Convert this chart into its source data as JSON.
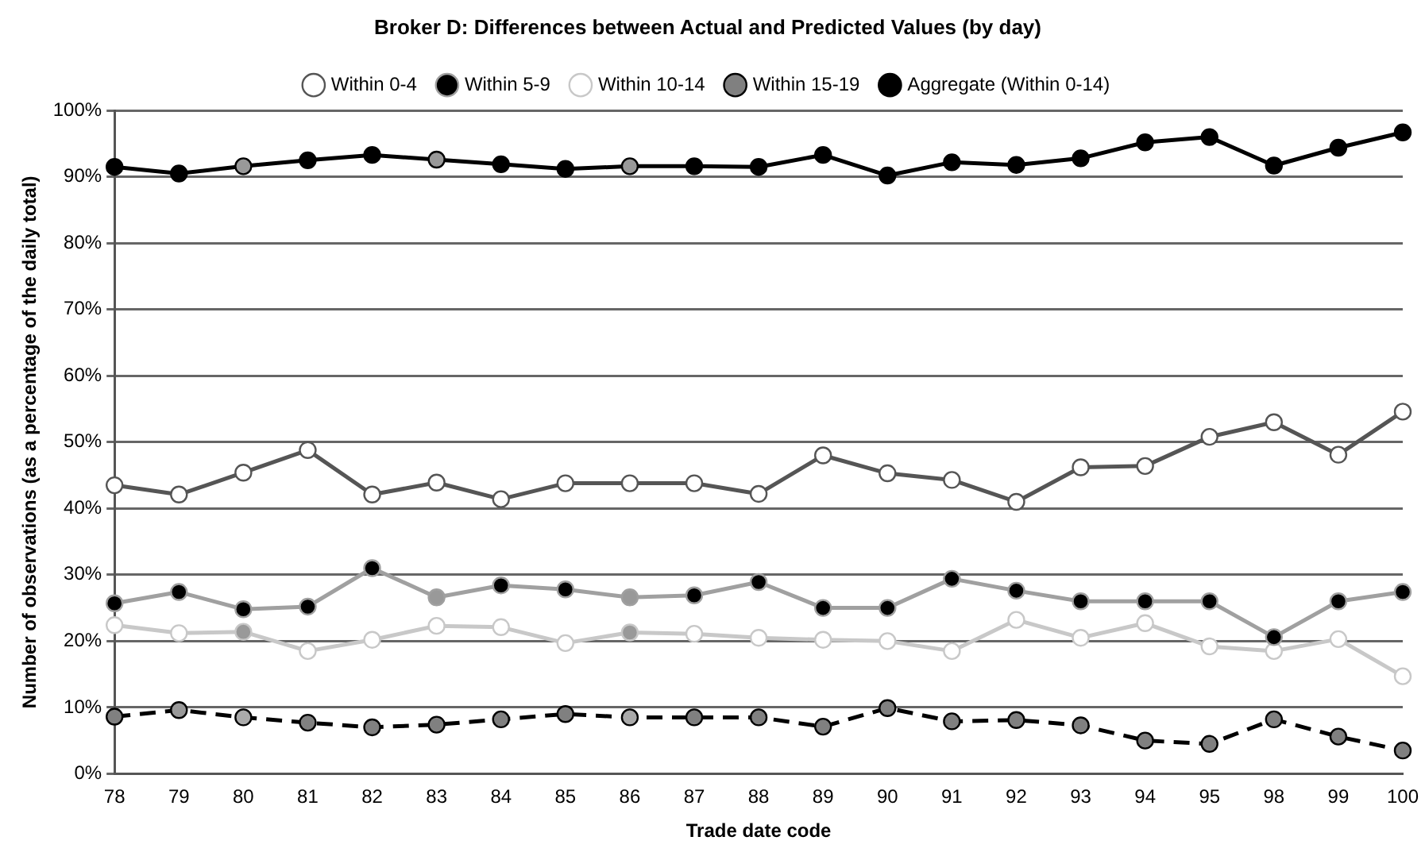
{
  "chart_data": {
    "type": "line",
    "title": "Broker D: Differences between Actual and Predicted Values (by day)",
    "xlabel": "Trade date code",
    "ylabel": "Number of observations (as a percentage of the daily total)",
    "categories": [
      "78",
      "79",
      "80",
      "81",
      "82",
      "83",
      "84",
      "85",
      "86",
      "87",
      "88",
      "89",
      "90",
      "91",
      "92",
      "93",
      "94",
      "95",
      "98",
      "99",
      "100"
    ],
    "series": [
      {
        "name": "Within 0-4",
        "color": "#555555",
        "colors": [
          "#ffffff",
          "#ffffff",
          "#ffffff",
          "#ffffff",
          "#ffffff",
          "#ffffff",
          "#ffffff",
          "#ffffff",
          "#ffffff",
          "#ffffff",
          "#ffffff",
          "#ffffff",
          "#ffffff",
          "#ffffff",
          "#ffffff",
          "#ffffff",
          "#ffffff",
          "#ffffff",
          "#ffffff",
          "#ffffff",
          "#ffffff"
        ],
        "values": [
          43.5,
          42.1,
          45.4,
          48.8,
          42.1,
          43.9,
          41.4,
          43.8,
          43.8,
          43.8,
          42.2,
          48.0,
          45.3,
          44.3,
          41.0,
          46.2,
          46.4,
          50.8,
          53.0,
          48.1,
          54.6
        ]
      },
      {
        "name": "Within 5-9",
        "color": "#a0a0a0",
        "colors": [
          "#000000",
          "#000000",
          "#000000",
          "#000000",
          "#000000",
          "#999999",
          "#000000",
          "#000000",
          "#999999",
          "#000000",
          "#000000",
          "#000000",
          "#000000",
          "#000000",
          "#000000",
          "#000000",
          "#000000",
          "#000000",
          "#000000",
          "#000000",
          "#000000"
        ],
        "values": [
          25.7,
          27.4,
          24.8,
          25.2,
          31.0,
          26.6,
          28.4,
          27.8,
          26.6,
          26.9,
          28.9,
          25.0,
          25.0,
          29.4,
          27.6,
          26.0,
          26.0,
          26.0,
          20.6,
          26.0,
          27.4
        ]
      },
      {
        "name": "Within 10-14",
        "color": "#c8c8c8",
        "colors": [
          "#ffffff",
          "#ffffff",
          "#999999",
          "#ffffff",
          "#ffffff",
          "#ffffff",
          "#ffffff",
          "#ffffff",
          "#999999",
          "#ffffff",
          "#ffffff",
          "#ffffff",
          "#ffffff",
          "#ffffff",
          "#ffffff",
          "#ffffff",
          "#ffffff",
          "#ffffff",
          "#ffffff",
          "#ffffff",
          "#ffffff"
        ],
        "values": [
          22.4,
          21.2,
          21.4,
          18.5,
          20.2,
          22.3,
          22.1,
          19.7,
          21.3,
          21.1,
          20.5,
          20.2,
          20.0,
          18.5,
          23.2,
          20.5,
          22.7,
          19.2,
          18.5,
          20.3,
          14.7
        ]
      },
      {
        "name": "Within 15-19",
        "color": "#000000",
        "line_style": "dashed",
        "colors": [
          "#808080",
          "#999999",
          "#aaaaaa",
          "#808080",
          "#808080",
          "#808080",
          "#808080",
          "#808080",
          "#aaaaaa",
          "#808080",
          "#808080",
          "#808080",
          "#808080",
          "#808080",
          "#808080",
          "#808080",
          "#808080",
          "#808080",
          "#808080",
          "#808080",
          "#808080"
        ],
        "values": [
          8.6,
          9.6,
          8.5,
          7.7,
          7.0,
          7.4,
          8.2,
          9.0,
          8.5,
          8.5,
          8.5,
          7.1,
          9.9,
          7.9,
          8.1,
          7.3,
          5.0,
          4.5,
          8.2,
          5.6,
          3.5
        ]
      },
      {
        "name": "Aggregate (Within 0-14)",
        "color": "#000000",
        "colors": [
          "#000000",
          "#000000",
          "#999999",
          "#000000",
          "#000000",
          "#999999",
          "#000000",
          "#000000",
          "#999999",
          "#000000",
          "#000000",
          "#000000",
          "#000000",
          "#000000",
          "#000000",
          "#000000",
          "#000000",
          "#000000",
          "#000000",
          "#000000",
          "#000000"
        ],
        "values": [
          91.5,
          90.5,
          91.6,
          92.5,
          93.3,
          92.6,
          91.9,
          91.2,
          91.6,
          91.6,
          91.5,
          93.3,
          90.2,
          92.2,
          91.8,
          92.8,
          95.2,
          96.0,
          91.7,
          94.4,
          96.7
        ]
      }
    ],
    "ylim": [
      0,
      100
    ],
    "yticks": [
      {
        "value": 0,
        "label": "0%"
      },
      {
        "value": 10,
        "label": "10%"
      },
      {
        "value": 20,
        "label": "20%"
      },
      {
        "value": 30,
        "label": "30%"
      },
      {
        "value": 40,
        "label": "40%"
      },
      {
        "value": 50,
        "label": "50%"
      },
      {
        "value": 60,
        "label": "60%"
      },
      {
        "value": 70,
        "label": "70%"
      },
      {
        "value": 80,
        "label": "80%"
      },
      {
        "value": 90,
        "label": "90%"
      },
      {
        "value": 100,
        "label": "100%"
      }
    ],
    "grid": "y",
    "legend": "top",
    "marker": "circle"
  }
}
